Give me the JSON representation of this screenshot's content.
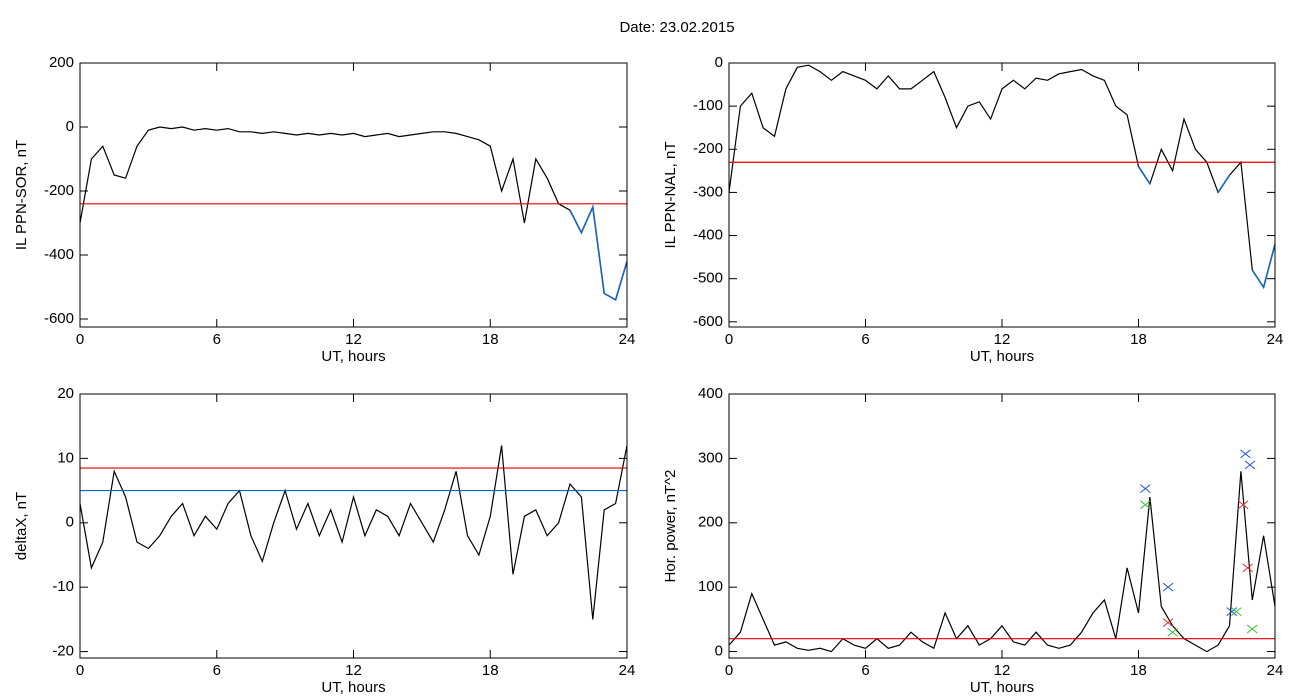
{
  "title": "Date:  23.02.2015",
  "chart_data": [
    {
      "type": "line",
      "xlabel": "UT, hours",
      "ylabel": "IL PPN-SOR, nT",
      "xlim": [
        0,
        24
      ],
      "xticks": [
        0,
        6,
        12,
        18,
        24
      ],
      "ylim": [
        -625,
        200
      ],
      "yticks": [
        -600,
        -400,
        -200,
        0,
        200
      ],
      "x": [
        0,
        0.5,
        1,
        1.5,
        2,
        2.5,
        3,
        3.5,
        4,
        4.5,
        5,
        5.5,
        6,
        6.5,
        7,
        7.5,
        8,
        8.5,
        9,
        9.5,
        10,
        10.5,
        11,
        11.5,
        12,
        12.5,
        13,
        13.5,
        14,
        14.5,
        15,
        15.5,
        16,
        16.5,
        17,
        17.5,
        18,
        18.5,
        19,
        19.5,
        20,
        20.5,
        21,
        21.5,
        22,
        22.5,
        23,
        23.5,
        24
      ],
      "series": [
        {
          "color": "#000000",
          "below_color": "#1565c0",
          "values": [
            -300,
            -100,
            -60,
            -150,
            -160,
            -60,
            -10,
            0,
            -5,
            0,
            -10,
            -5,
            -10,
            -5,
            -15,
            -15,
            -20,
            -15,
            -20,
            -25,
            -20,
            -25,
            -20,
            -25,
            -20,
            -30,
            -25,
            -20,
            -30,
            -25,
            -20,
            -15,
            -15,
            -20,
            -30,
            -40,
            -60,
            -200,
            -100,
            -300,
            -100,
            -160,
            -240,
            -260,
            -330,
            -250,
            -520,
            -540,
            -420
          ]
        }
      ],
      "reference_lines": [
        {
          "value": -240,
          "color": "#e00000"
        }
      ]
    },
    {
      "type": "line",
      "xlabel": "UT, hours",
      "ylabel": "IL PPN-NAL, nT",
      "xlim": [
        0,
        24
      ],
      "xticks": [
        0,
        6,
        12,
        18,
        24
      ],
      "ylim": [
        -612,
        0
      ],
      "yticks": [
        -600,
        -500,
        -400,
        -300,
        -200,
        -100,
        0
      ],
      "x": [
        0,
        0.5,
        1,
        1.5,
        2,
        2.5,
        3,
        3.5,
        4,
        4.5,
        5,
        5.5,
        6,
        6.5,
        7,
        7.5,
        8,
        8.5,
        9,
        9.5,
        10,
        10.5,
        11,
        11.5,
        12,
        12.5,
        13,
        13.5,
        14,
        14.5,
        15,
        15.5,
        16,
        16.5,
        17,
        17.5,
        18,
        18.5,
        19,
        19.5,
        20,
        20.5,
        21,
        21.5,
        22,
        22.5,
        23,
        23.5,
        24
      ],
      "series": [
        {
          "color": "#000000",
          "below_color": "#1565c0",
          "values": [
            -300,
            -100,
            -70,
            -150,
            -170,
            -60,
            -10,
            -5,
            -20,
            -40,
            -20,
            -30,
            -40,
            -60,
            -30,
            -60,
            -60,
            -40,
            -20,
            -80,
            -150,
            -100,
            -90,
            -130,
            -60,
            -40,
            -60,
            -35,
            -40,
            -25,
            -20,
            -15,
            -30,
            -40,
            -100,
            -120,
            -240,
            -280,
            -200,
            -250,
            -130,
            -200,
            -230,
            -300,
            -260,
            -230,
            -480,
            -520,
            -420
          ]
        }
      ],
      "reference_lines": [
        {
          "value": -230,
          "color": "#e00000"
        }
      ]
    },
    {
      "type": "line",
      "xlabel": "UT, hours",
      "ylabel": "deltaX, nT",
      "xlim": [
        0,
        24
      ],
      "xticks": [
        0,
        6,
        12,
        18,
        24
      ],
      "ylim": [
        -21,
        20
      ],
      "yticks": [
        -20,
        -10,
        0,
        10,
        20
      ],
      "x": [
        0,
        0.5,
        1,
        1.5,
        2,
        2.5,
        3,
        3.5,
        4,
        4.5,
        5,
        5.5,
        6,
        6.5,
        7,
        7.5,
        8,
        8.5,
        9,
        9.5,
        10,
        10.5,
        11,
        11.5,
        12,
        12.5,
        13,
        13.5,
        14,
        14.5,
        15,
        15.5,
        16,
        16.5,
        17,
        17.5,
        18,
        18.5,
        19,
        19.5,
        20,
        20.5,
        21,
        21.5,
        22,
        22.5,
        23,
        23.5,
        24
      ],
      "series": [
        {
          "color": "#000000",
          "values": [
            3,
            -7,
            -3,
            8,
            4,
            -3,
            -4,
            -2,
            1,
            3,
            -2,
            1,
            -1,
            3,
            5,
            -2,
            -6,
            0,
            5,
            -1,
            3,
            -2,
            2,
            -3,
            4,
            -2,
            2,
            1,
            -2,
            3,
            0,
            -3,
            2,
            8,
            -2,
            -5,
            1,
            12,
            -8,
            1,
            2,
            -2,
            0,
            6,
            4,
            -15,
            2,
            3,
            12
          ]
        }
      ],
      "reference_lines": [
        {
          "value": 8.5,
          "color": "#e00000"
        },
        {
          "value": 5,
          "color": "#1565c0"
        }
      ]
    },
    {
      "type": "line",
      "xlabel": "UT, hours",
      "ylabel": "Hor. power, nT^2",
      "xlim": [
        0,
        24
      ],
      "xticks": [
        0,
        6,
        12,
        18,
        24
      ],
      "ylim": [
        -10,
        400
      ],
      "yticks": [
        0,
        100,
        200,
        300,
        400
      ],
      "x": [
        0,
        0.5,
        1,
        1.5,
        2,
        2.5,
        3,
        3.5,
        4,
        4.5,
        5,
        5.5,
        6,
        6.5,
        7,
        7.5,
        8,
        8.5,
        9,
        9.5,
        10,
        10.5,
        11,
        11.5,
        12,
        12.5,
        13,
        13.5,
        14,
        14.5,
        15,
        15.5,
        16,
        16.5,
        17,
        17.5,
        18,
        18.5,
        19,
        19.5,
        20,
        20.5,
        21,
        21.5,
        22,
        22.5,
        23,
        23.5,
        24
      ],
      "series": [
        {
          "color": "#000000",
          "values": [
            10,
            30,
            90,
            50,
            10,
            15,
            5,
            2,
            5,
            0,
            20,
            10,
            5,
            20,
            5,
            10,
            30,
            15,
            5,
            60,
            20,
            40,
            10,
            20,
            40,
            15,
            10,
            30,
            10,
            5,
            10,
            30,
            60,
            80,
            20,
            130,
            60,
            240,
            70,
            40,
            20,
            10,
            0,
            10,
            40,
            280,
            80,
            180,
            70
          ]
        }
      ],
      "reference_lines": [
        {
          "value": 20,
          "color": "#e00000"
        }
      ],
      "markers": [
        {
          "color": "#2050e0",
          "x": [
            18.3,
            19.3,
            22.1,
            22.7,
            22.9
          ],
          "values": [
            253,
            100,
            62,
            307,
            290
          ]
        },
        {
          "color": "#e03030",
          "x": [
            19.3,
            22.6,
            22.8
          ],
          "values": [
            45,
            228,
            130
          ]
        },
        {
          "color": "#30c030",
          "x": [
            18.3,
            19.5,
            22.3,
            23.0
          ],
          "values": [
            228,
            30,
            62,
            35
          ]
        }
      ]
    }
  ]
}
